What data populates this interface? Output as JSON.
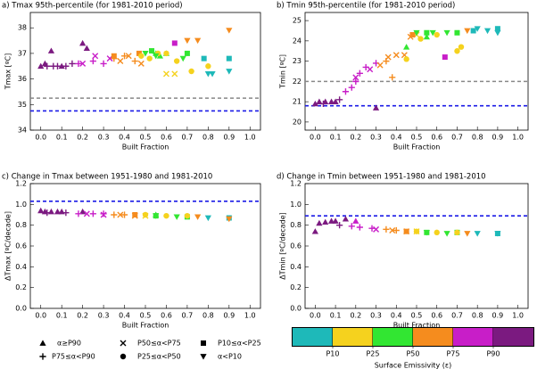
{
  "chart_data": [
    {
      "type": "scatter",
      "title": "a) Tmax 95th-percentile (for 1981-2010 period)",
      "xlabel": "Built Fraction",
      "ylabel": "Tmax [ºC]",
      "xlim": [
        -0.05,
        1.05
      ],
      "ylim": [
        34,
        38.6
      ],
      "xticks": [
        {
          "value": 0,
          "label": "0.0"
        },
        0.1,
        0.2,
        0.3,
        0.4,
        0.5,
        0.6,
        0.7,
        0.8,
        0.9,
        {
          "value": 1,
          "label": "1.0"
        }
      ],
      "yticks": [
        34,
        35,
        36,
        37,
        38
      ],
      "hlines": [
        {
          "value": 35.25,
          "color": "#888888"
        },
        {
          "value": 34.75,
          "color": "#1a1ae6"
        }
      ],
      "series": [
        {
          "marker": "triangle-up",
          "x": [
            0.0,
            0.02,
            0.05,
            0.1,
            0.2,
            0.22,
            0.55,
            0.57,
            0.6
          ],
          "values": [
            36.5,
            36.6,
            37.1,
            36.5,
            37.4,
            37.2,
            37.0,
            36.9,
            37.0
          ],
          "colors": [
            "#7b1a80",
            "#7b1a80",
            "#7b1a80",
            "#7b1a80",
            "#7b1a80",
            "#7b1a80",
            "#32e632",
            "#32e632",
            "#32e632"
          ]
        },
        {
          "marker": "plus",
          "x": [
            0.03,
            0.06,
            0.08,
            0.12,
            0.15,
            0.18,
            0.25,
            0.3,
            0.35,
            0.4,
            0.45
          ],
          "values": [
            36.5,
            36.5,
            36.5,
            36.5,
            36.6,
            36.6,
            36.7,
            36.6,
            36.8,
            36.9,
            36.7
          ],
          "colors": [
            "#7b1a80",
            "#7b1a80",
            "#7b1a80",
            "#7b1a80",
            "#7b1a80",
            "#c81ec8",
            "#c81ec8",
            "#c81ec8",
            "#f58c1e",
            "#f58c1e",
            "#f58c1e"
          ]
        },
        {
          "marker": "x",
          "x": [
            0.2,
            0.26,
            0.33,
            0.38,
            0.42,
            0.48,
            0.6,
            0.64
          ],
          "values": [
            36.6,
            36.9,
            36.8,
            36.7,
            36.9,
            36.6,
            36.2,
            36.2
          ],
          "colors": [
            "#c81ec8",
            "#c81ec8",
            "#c81ec8",
            "#f58c1e",
            "#f58c1e",
            "#f58c1e",
            "#f5d21e",
            "#f5d21e"
          ]
        },
        {
          "marker": "square",
          "x": [
            0.35,
            0.47,
            0.53,
            0.64,
            0.7,
            0.78,
            0.9
          ],
          "values": [
            36.9,
            37.0,
            37.1,
            37.4,
            37.0,
            36.8,
            36.8
          ],
          "colors": [
            "#f58c1e",
            "#f58c1e",
            "#32e632",
            "#c81ec8",
            "#32e632",
            "#1eb9b9",
            "#1eb9b9"
          ]
        },
        {
          "marker": "circle",
          "x": [
            0.48,
            0.52,
            0.56,
            0.6,
            0.65,
            0.72,
            0.8
          ],
          "values": [
            36.9,
            36.8,
            37.0,
            37.0,
            36.7,
            36.3,
            36.5
          ],
          "colors": [
            "#f5d21e",
            "#f5d21e",
            "#f5d21e",
            "#f5d21e",
            "#f5d21e",
            "#f5d21e",
            "#f5d21e"
          ]
        },
        {
          "marker": "triangle-down",
          "x": [
            0.5,
            0.55,
            0.68,
            0.7,
            0.75,
            0.8,
            0.82,
            0.9,
            0.9
          ],
          "values": [
            37.0,
            36.9,
            36.8,
            37.5,
            37.5,
            36.2,
            36.2,
            37.9,
            36.3
          ],
          "colors": [
            "#32e632",
            "#32e632",
            "#32e632",
            "#f58c1e",
            "#f58c1e",
            "#1eb9b9",
            "#1eb9b9",
            "#f58c1e",
            "#1eb9b9"
          ]
        }
      ]
    },
    {
      "type": "scatter",
      "title": "b) Tmin 95th-percentile (for 1981-2010 period)",
      "xlabel": "Built Fraction",
      "ylabel": "Tmin [ºC]",
      "xlim": [
        -0.05,
        1.05
      ],
      "ylim": [
        19.6,
        25.4
      ],
      "xticks": [
        {
          "value": 0,
          "label": "0.0"
        },
        0.1,
        0.2,
        0.3,
        0.4,
        0.5,
        0.6,
        0.7,
        0.8,
        0.9,
        {
          "value": 1,
          "label": "1.0"
        }
      ],
      "yticks": [
        20,
        21,
        22,
        23,
        24,
        25
      ],
      "hlines": [
        {
          "value": 22.0,
          "color": "#888888"
        },
        {
          "value": 20.8,
          "color": "#1a1ae6"
        }
      ],
      "series": [
        {
          "marker": "triangle-up",
          "x": [
            0.0,
            0.02,
            0.05,
            0.08,
            0.1,
            0.3,
            0.45,
            0.55
          ],
          "values": [
            20.9,
            21.0,
            21.0,
            21.0,
            21.0,
            20.7,
            23.7,
            24.2
          ],
          "colors": [
            "#7b1a80",
            "#7b1a80",
            "#7b1a80",
            "#7b1a80",
            "#7b1a80",
            "#7b1a80",
            "#32e632",
            "#32e632"
          ]
        },
        {
          "marker": "plus",
          "x": [
            0.04,
            0.12,
            0.15,
            0.18,
            0.2,
            0.22,
            0.25,
            0.3,
            0.35,
            0.38
          ],
          "values": [
            20.9,
            21.1,
            21.5,
            21.7,
            22.0,
            22.4,
            22.7,
            22.9,
            23.0,
            22.2
          ],
          "colors": [
            "#7b1a80",
            "#7b1a80",
            "#c81ec8",
            "#c81ec8",
            "#c81ec8",
            "#c81ec8",
            "#c81ec8",
            "#c81ec8",
            "#f58c1e",
            "#f58c1e"
          ]
        },
        {
          "marker": "x",
          "x": [
            0.2,
            0.27,
            0.32,
            0.36,
            0.4,
            0.44,
            0.47,
            0.5
          ],
          "values": [
            22.2,
            22.6,
            22.8,
            23.2,
            23.3,
            23.3,
            24.2,
            24.3
          ],
          "colors": [
            "#c81ec8",
            "#c81ec8",
            "#f58c1e",
            "#f58c1e",
            "#f58c1e",
            "#f58c1e",
            "#f58c1e",
            "#f5d21e"
          ]
        },
        {
          "marker": "square",
          "x": [
            0.48,
            0.55,
            0.64,
            0.7,
            0.78,
            0.9
          ],
          "values": [
            24.3,
            24.4,
            23.2,
            24.4,
            24.5,
            24.6
          ],
          "colors": [
            "#f58c1e",
            "#32e632",
            "#c81ec8",
            "#32e632",
            "#1eb9b9",
            "#1eb9b9"
          ]
        },
        {
          "marker": "circle",
          "x": [
            0.45,
            0.52,
            0.6,
            0.7,
            0.72
          ],
          "values": [
            23.1,
            24.1,
            24.3,
            23.5,
            23.7
          ],
          "colors": [
            "#f5d21e",
            "#f5d21e",
            "#f5d21e",
            "#f5d21e",
            "#f5d21e"
          ]
        },
        {
          "marker": "triangle-down",
          "x": [
            0.5,
            0.58,
            0.65,
            0.75,
            0.8,
            0.85,
            0.9
          ],
          "values": [
            24.4,
            24.4,
            24.4,
            24.5,
            24.6,
            24.5,
            24.4
          ],
          "colors": [
            "#32e632",
            "#32e632",
            "#32e632",
            "#f58c1e",
            "#1eb9b9",
            "#1eb9b9",
            "#1eb9b9"
          ]
        }
      ]
    },
    {
      "type": "scatter",
      "title": "c) Change in Tmax between 1951-1980 and 1981-2010",
      "xlabel": "Built Fraction",
      "ylabel": "ΔTmax [ºC/decade]",
      "xlim": [
        -0.05,
        1.05
      ],
      "ylim": [
        0,
        1.2
      ],
      "xticks": [
        {
          "value": 0,
          "label": "0.0"
        },
        0.1,
        0.2,
        0.3,
        0.4,
        0.5,
        0.6,
        0.7,
        0.8,
        0.9,
        {
          "value": 1,
          "label": "1.0"
        }
      ],
      "yticks": [
        {
          "value": 0,
          "label": "0.0"
        },
        0.2,
        0.4,
        0.6,
        0.8,
        {
          "value": 1,
          "label": "1.0"
        },
        1.2
      ],
      "hlines": [
        {
          "value": 1.03,
          "color": "#1a1ae6"
        }
      ],
      "series": [
        {
          "marker": "triangle-up",
          "x": [
            0.0,
            0.02,
            0.05,
            0.08,
            0.1,
            0.2,
            0.55
          ],
          "values": [
            0.94,
            0.93,
            0.93,
            0.93,
            0.93,
            0.93,
            0.9
          ],
          "colors": [
            "#7b1a80",
            "#7b1a80",
            "#7b1a80",
            "#7b1a80",
            "#7b1a80",
            "#7b1a80",
            "#32e632"
          ]
        },
        {
          "marker": "plus",
          "x": [
            0.03,
            0.12,
            0.18,
            0.25,
            0.3,
            0.35,
            0.4
          ],
          "values": [
            0.92,
            0.92,
            0.91,
            0.91,
            0.91,
            0.9,
            0.9
          ],
          "colors": [
            "#7b1a80",
            "#7b1a80",
            "#c81ec8",
            "#c81ec8",
            "#c81ec8",
            "#f58c1e",
            "#f58c1e"
          ]
        },
        {
          "marker": "x",
          "x": [
            0.22,
            0.3,
            0.38,
            0.45,
            0.5
          ],
          "values": [
            0.91,
            0.9,
            0.9,
            0.89,
            0.89
          ],
          "colors": [
            "#c81ec8",
            "#c81ec8",
            "#f58c1e",
            "#f58c1e",
            "#f5d21e"
          ]
        },
        {
          "marker": "square",
          "x": [
            0.45,
            0.55,
            0.7,
            0.9
          ],
          "values": [
            0.9,
            0.89,
            0.88,
            0.87
          ],
          "colors": [
            "#f58c1e",
            "#32e632",
            "#32e632",
            "#1eb9b9"
          ]
        },
        {
          "marker": "circle",
          "x": [
            0.5,
            0.6,
            0.7
          ],
          "values": [
            0.9,
            0.89,
            0.89
          ],
          "colors": [
            "#f5d21e",
            "#f5d21e",
            "#f5d21e"
          ]
        },
        {
          "marker": "triangle-down",
          "x": [
            0.55,
            0.65,
            0.75,
            0.8,
            0.9
          ],
          "values": [
            0.89,
            0.88,
            0.88,
            0.87,
            0.86
          ],
          "colors": [
            "#32e632",
            "#32e632",
            "#f58c1e",
            "#1eb9b9",
            "#f58c1e"
          ]
        }
      ]
    },
    {
      "type": "scatter",
      "title": "d) Change in Tmin between 1951-1980 and 1981-2010",
      "xlabel": "Built Fraction",
      "ylabel": "ΔTmin [ºC/decade]",
      "xlim": [
        -0.05,
        1.05
      ],
      "ylim": [
        0,
        1.2
      ],
      "xticks": [
        {
          "value": 0,
          "label": "0.0"
        },
        0.1,
        0.2,
        0.3,
        0.4,
        0.5,
        0.6,
        0.7,
        0.8,
        0.9,
        {
          "value": 1,
          "label": "1.0"
        }
      ],
      "yticks": [
        {
          "value": 0,
          "label": "0.0"
        },
        0.2,
        0.4,
        0.6,
        0.8,
        {
          "value": 1,
          "label": "1.0"
        },
        1.2
      ],
      "hlines": [
        {
          "value": 0.89,
          "color": "#1a1ae6"
        }
      ],
      "series": [
        {
          "marker": "triangle-up",
          "x": [
            0.0,
            0.02,
            0.05,
            0.08,
            0.1,
            0.15,
            0.2
          ],
          "values": [
            0.74,
            0.82,
            0.83,
            0.84,
            0.84,
            0.86,
            0.84
          ],
          "colors": [
            "#7b1a80",
            "#7b1a80",
            "#7b1a80",
            "#7b1a80",
            "#7b1a80",
            "#7b1a80",
            "#c81ec8"
          ]
        },
        {
          "marker": "plus",
          "x": [
            0.12,
            0.18,
            0.22,
            0.28,
            0.35,
            0.4
          ],
          "values": [
            0.8,
            0.79,
            0.78,
            0.77,
            0.76,
            0.75
          ],
          "colors": [
            "#7b1a80",
            "#c81ec8",
            "#c81ec8",
            "#c81ec8",
            "#f58c1e",
            "#f58c1e"
          ]
        },
        {
          "marker": "x",
          "x": [
            0.3,
            0.38,
            0.45,
            0.5
          ],
          "values": [
            0.76,
            0.75,
            0.74,
            0.74
          ],
          "colors": [
            "#c81ec8",
            "#f58c1e",
            "#f58c1e",
            "#f5d21e"
          ]
        },
        {
          "marker": "square",
          "x": [
            0.45,
            0.55,
            0.7,
            0.9
          ],
          "values": [
            0.74,
            0.73,
            0.73,
            0.72
          ],
          "colors": [
            "#f58c1e",
            "#32e632",
            "#32e632",
            "#1eb9b9"
          ]
        },
        {
          "marker": "circle",
          "x": [
            0.5,
            0.6,
            0.7
          ],
          "values": [
            0.74,
            0.73,
            0.73
          ],
          "colors": [
            "#f5d21e",
            "#f5d21e",
            "#f5d21e"
          ]
        },
        {
          "marker": "triangle-down",
          "x": [
            0.55,
            0.65,
            0.75,
            0.8,
            0.9
          ],
          "values": [
            0.73,
            0.72,
            0.72,
            0.72,
            0.72
          ],
          "colors": [
            "#32e632",
            "#32e632",
            "#f58c1e",
            "#1eb9b9",
            "#1eb9b9"
          ]
        }
      ]
    }
  ],
  "legend": [
    {
      "name": "α≥P90",
      "marker": "triangle-up"
    },
    {
      "name": "P75≤α<P90",
      "marker": "plus"
    },
    {
      "name": "P50≤α<P75",
      "marker": "x"
    },
    {
      "name": "P25≤α<P50",
      "marker": "circle"
    },
    {
      "name": "P10≤α<P25",
      "marker": "square"
    },
    {
      "name": "α<P10",
      "marker": "triangle-down"
    }
  ],
  "colorbar": {
    "label": "Surface Emissivity (ε)",
    "colors": [
      "#1eb9b9",
      "#f5d21e",
      "#32e632",
      "#f58c1e",
      "#c81ec8",
      "#7b1a80"
    ],
    "ticks": [
      "P10",
      "P25",
      "P50",
      "P75",
      "P90"
    ]
  }
}
